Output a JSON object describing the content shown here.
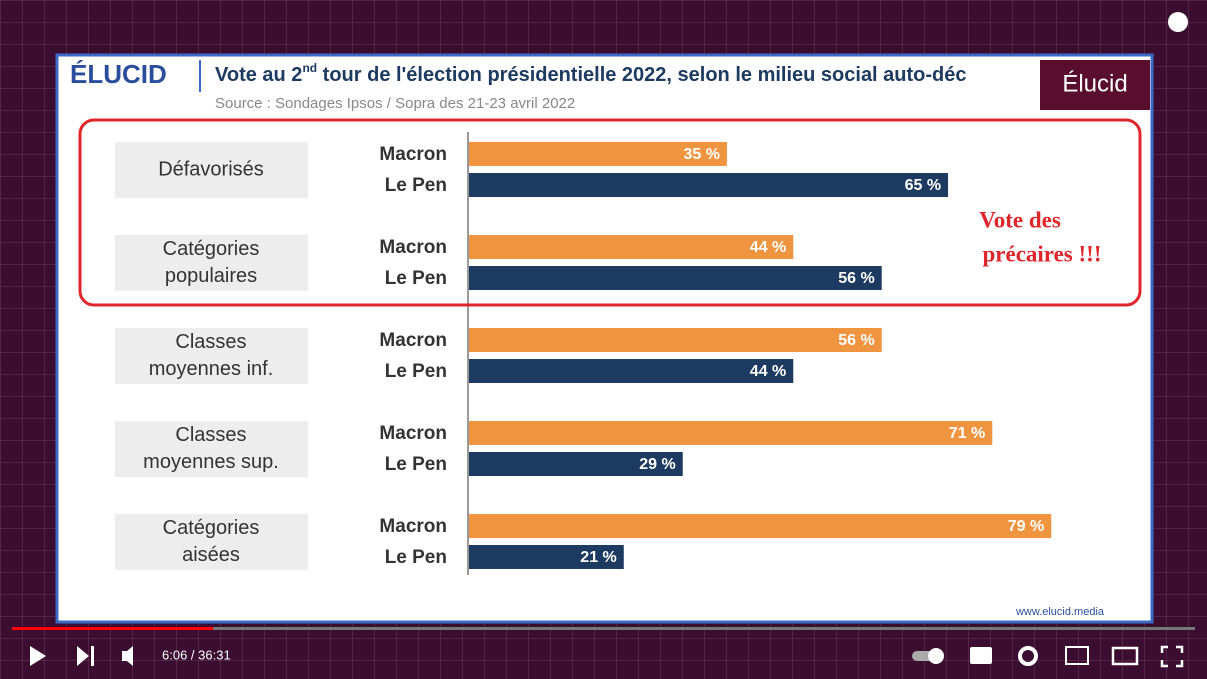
{
  "brand": "ÉLUCID",
  "brand_box": "Élucid",
  "title_parts": [
    "Vote au 2",
    "nd",
    " tour de l'élection présidentielle 2022, selon le milieu social auto-déc"
  ],
  "source": "Source : Sondages Ipsos / Sopra des 21-23 avril 2022",
  "annotation": [
    "Vote des",
    "précaires !!!"
  ],
  "footer_url": "www.elucid.media",
  "player": {
    "time": "6:06 / 36:31"
  },
  "chart_data": {
    "type": "bar",
    "orientation": "horizontal",
    "categories": [
      [
        "Défavorisés"
      ],
      [
        "Catégories",
        "populaires"
      ],
      [
        "Classes",
        "moyennes inf."
      ],
      [
        "Classes",
        "moyennes sup."
      ],
      [
        "Catégories",
        "aisées"
      ]
    ],
    "series": [
      {
        "name": "Macron",
        "color": "#f0953f",
        "values": [
          35,
          44,
          56,
          71,
          79
        ],
        "value_labels": [
          "35 %",
          "44 %",
          "56 %",
          "71 %",
          "79 %"
        ]
      },
      {
        "name": "Le Pen",
        "color": "#1d3b60",
        "values": [
          65,
          56,
          44,
          29,
          21
        ],
        "value_labels": [
          "65 %",
          "56 %",
          "44 %",
          "29 %",
          "21 %"
        ]
      }
    ]
  }
}
